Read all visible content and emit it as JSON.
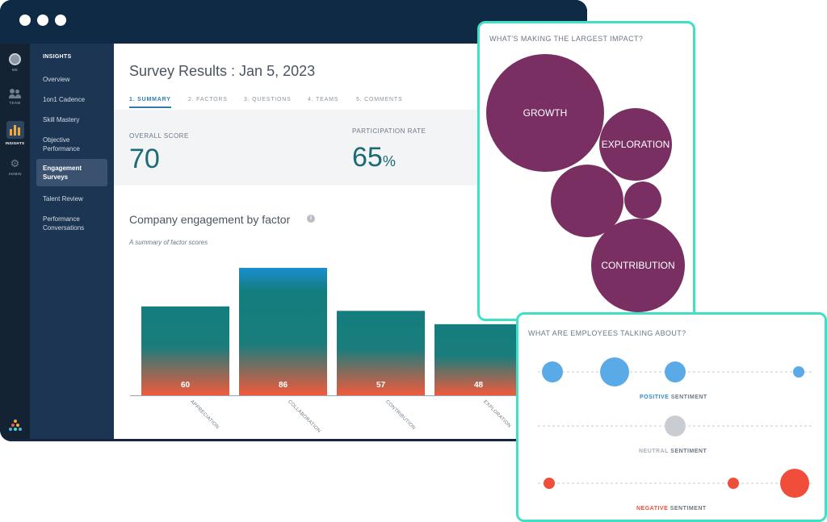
{
  "window": {
    "rail": {
      "items": [
        {
          "label": "ME",
          "icon": "avatar-icon"
        },
        {
          "label": "TEAM",
          "icon": "team-icon"
        },
        {
          "label": "INSIGHTS",
          "icon": "bar-chart-icon"
        },
        {
          "label": "ADMIN",
          "icon": "gear-icon"
        }
      ]
    },
    "nav": {
      "header": "INSIGHTS",
      "items": [
        "Overview",
        "1on1 Cadence",
        "Skill Mastery",
        "Objective Performance",
        "Engagement Surveys",
        "Talent Review",
        "Performance Conversations"
      ],
      "active": "Engagement Surveys"
    },
    "page_title": "Survey Results : Jan 5, 2023",
    "tabs": [
      "1. SUMMARY",
      "2. FACTORS",
      "3. QUESTIONS",
      "4. TEAMS",
      "5. COMMENTS"
    ],
    "active_tab": "1. SUMMARY",
    "scores": {
      "overall_label": "OVERALL SCORE",
      "overall_value": "70",
      "participation_label": "PARTICIPATION RATE",
      "participation_value": "65",
      "participation_unit": "%"
    },
    "engagement": {
      "title": "Company engagement by factor",
      "subtitle": "A summary of factor scores"
    }
  },
  "chart_data": [
    {
      "type": "bar",
      "categories": [
        "APPRECIATION",
        "COLLABORATION",
        "CONTRIBUTION",
        "EXPLORATION"
      ],
      "values": [
        60,
        86,
        57,
        48
      ],
      "ylim": [
        0,
        86
      ],
      "colors": {
        "top": "#147d7e",
        "bottom": "#f15a3c",
        "highlight_top": "#1a8fd0"
      }
    },
    {
      "type": "bubble",
      "title": "WHAT'S MAKING THE LARGEST IMPACT?",
      "labels": [
        "GROWTH",
        "EXPLORATION",
        "",
        "",
        "CONTRIBUTION"
      ],
      "color": "#7a2f63"
    },
    {
      "type": "scatter",
      "title": "WHAT ARE EMPLOYEES TALKING ABOUT?",
      "series": [
        {
          "name": "POSITIVE",
          "suffix": "SENTIMENT",
          "color": "#5aaae8",
          "points": 4
        },
        {
          "name": "NEUTRAL",
          "suffix": "SENTIMENT",
          "color": "#c9cdd2",
          "points": 1
        },
        {
          "name": "NEGATIVE",
          "suffix": "SENTIMENT",
          "color": "#f04e3a",
          "points": 3
        }
      ]
    }
  ]
}
